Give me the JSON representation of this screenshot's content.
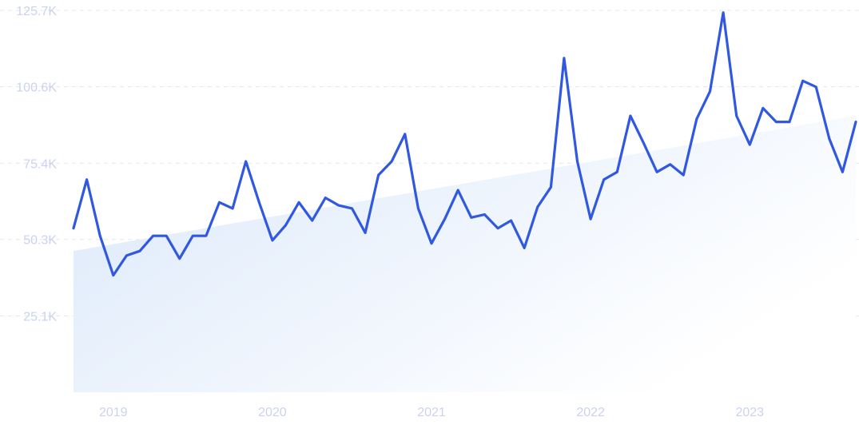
{
  "chart_data": {
    "type": "line",
    "title": "",
    "xlabel": "",
    "ylabel": "",
    "x_start": "2018-10",
    "x_end": "2023-09",
    "ylim": [
      0,
      125700
    ],
    "y_ticks": [
      {
        "value": 25100,
        "label": "25.1K"
      },
      {
        "value": 50300,
        "label": "50.3K"
      },
      {
        "value": 75400,
        "label": "75.4K"
      },
      {
        "value": 100600,
        "label": "100.6K"
      },
      {
        "value": 125700,
        "label": "125.7K"
      }
    ],
    "x_ticks": [
      {
        "date": "2019-01",
        "label": "2019"
      },
      {
        "date": "2020-01",
        "label": "2020"
      },
      {
        "date": "2021-01",
        "label": "2021"
      },
      {
        "date": "2022-01",
        "label": "2022"
      },
      {
        "date": "2023-01",
        "label": "2023"
      }
    ],
    "grid": true,
    "trend": {
      "start": 46500,
      "end": 91000
    },
    "colors": {
      "line": "#3058e0",
      "trend_fill": "#dbe8fa",
      "grid": "#e3e7f1",
      "ticks": "#c9d3f0"
    },
    "series": [
      {
        "dates": [
          "2018-10",
          "2018-11",
          "2018-12",
          "2019-01",
          "2019-02",
          "2019-03",
          "2019-04",
          "2019-05",
          "2019-06",
          "2019-07",
          "2019-08",
          "2019-09",
          "2019-10",
          "2019-11",
          "2019-12",
          "2020-01",
          "2020-02",
          "2020-03",
          "2020-04",
          "2020-05",
          "2020-06",
          "2020-07",
          "2020-08",
          "2020-09",
          "2020-10",
          "2020-11",
          "2020-12",
          "2021-01",
          "2021-02",
          "2021-03",
          "2021-04",
          "2021-05",
          "2021-06",
          "2021-07",
          "2021-08",
          "2021-09",
          "2021-10",
          "2021-11",
          "2021-12",
          "2022-01",
          "2022-02",
          "2022-03",
          "2022-04",
          "2022-05",
          "2022-06",
          "2022-07",
          "2022-08",
          "2022-09",
          "2022-10",
          "2022-11",
          "2022-12",
          "2023-01",
          "2023-02",
          "2023-03",
          "2023-04",
          "2023-05",
          "2023-06",
          "2023-07",
          "2023-08",
          "2023-09"
        ],
        "values": [
          54000,
          70000,
          51500,
          38500,
          45000,
          46500,
          51500,
          51500,
          44000,
          51500,
          51500,
          62500,
          60500,
          76000,
          62500,
          50000,
          55000,
          62500,
          56500,
          64000,
          61500,
          60500,
          52500,
          71500,
          76000,
          85000,
          60500,
          49000,
          57000,
          66500,
          57500,
          58500,
          54000,
          56500,
          47500,
          61000,
          67500,
          110000,
          76000,
          57000,
          70000,
          72500,
          91000,
          82000,
          72500,
          75000,
          71500,
          90000,
          99000,
          125000,
          91000,
          81500,
          93500,
          89000,
          89000,
          102500,
          100500,
          83500,
          72500,
          89000
        ]
      }
    ]
  }
}
